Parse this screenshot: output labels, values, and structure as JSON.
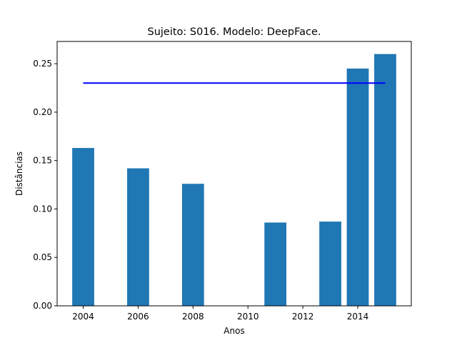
{
  "chart_data": {
    "type": "bar",
    "title": "Sujeito: S016. Modelo: DeepFace.",
    "xlabel": "Anos",
    "ylabel": "Distâncias",
    "x": [
      2004,
      2006,
      2008,
      2011,
      2013,
      2014,
      2015
    ],
    "values": [
      0.163,
      0.142,
      0.126,
      0.086,
      0.087,
      0.245,
      0.26
    ],
    "bar_width_years": 0.8,
    "bar_color": "#1f77b4",
    "threshold_line": {
      "y": 0.23,
      "x_from": 2004,
      "x_to": 2015,
      "color": "#0000ff"
    },
    "xlim": [
      2003.05,
      2015.95
    ],
    "ylim": [
      0,
      0.273
    ],
    "xticks": [
      "2004",
      "2006",
      "2008",
      "2010",
      "2012",
      "2014"
    ],
    "yticks": [
      "0.00",
      "0.05",
      "0.10",
      "0.15",
      "0.20",
      "0.25"
    ],
    "grid": false,
    "legend": "none"
  }
}
